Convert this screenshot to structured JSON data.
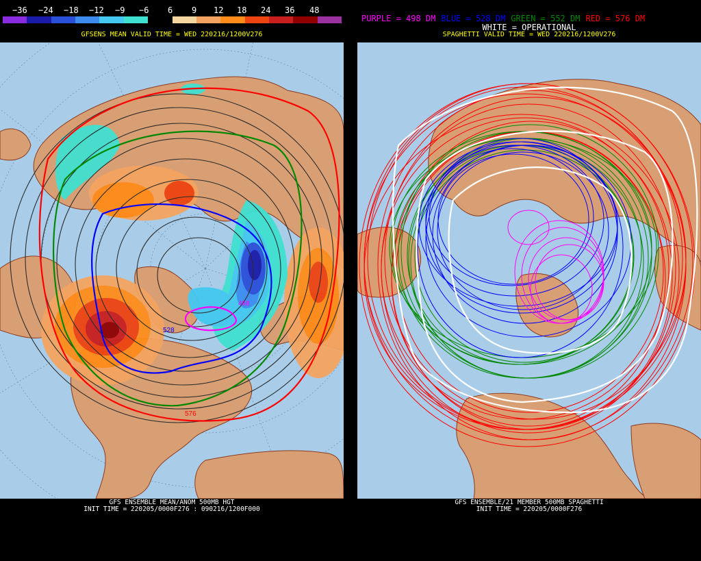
{
  "left_panel": {
    "colorbar": {
      "labels": [
        "−36",
        "−24",
        "−18",
        "−12",
        "−9",
        "−6",
        "6",
        "9",
        "12",
        "18",
        "24",
        "36",
        "48"
      ],
      "colors": [
        "#8a2be2",
        "#1a1aa8",
        "#2a4fd8",
        "#3c8cf0",
        "#44c8f0",
        "#40e0d0",
        "#000000",
        "#f5d5a0",
        "#f4a460",
        "#ff8c1a",
        "#ee4411",
        "#c81e1e",
        "#900000",
        "#9b30a0"
      ]
    },
    "title": "GFSENS MEAN VALID TIME = WED 220216/1200V276",
    "contour_labels": {
      "c498": "498",
      "c528": "528",
      "c576": "576"
    },
    "footer_line1": "GFS ENSEMBLE MEAN/ANOM 500MB HGT",
    "footer_line2": "INIT TIME = 220205/0000F276 : 090216/1200F000"
  },
  "right_panel": {
    "legend": {
      "purple": "PURPLE = 498 DM",
      "blue": "BLUE = 528 DM",
      "green": "GREEN = 552 DM",
      "red": "RED = 576 DM",
      "white": "WHITE = OPERATIONAL"
    },
    "title": "SPAGHETTI VALID TIME = WED 220216/1200V276",
    "footer_line1": "GFS ENSEMBLE/21 MEMBER 500MB SPAGHETTI",
    "footer_line2": "INIT TIME = 220205/0000F276"
  },
  "colors": {
    "ocean": "#a9cde8",
    "land": "#d99f74",
    "coast": "#8b3a1e",
    "purple": "#ff00ff",
    "blue": "#0000ff",
    "green": "#008800",
    "red": "#ff0000",
    "white": "#ffffff"
  }
}
